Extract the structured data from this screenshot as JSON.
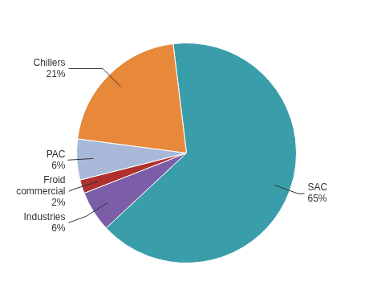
{
  "chart_data": {
    "type": "pie",
    "categories": [
      "SAC",
      "Industries",
      "Froid\ncommercial",
      "PAC",
      "Chillers"
    ],
    "values": [
      65,
      6,
      2,
      6,
      21
    ],
    "value_labels": [
      "65%",
      "6%",
      "2%",
      "6%",
      "21%"
    ],
    "colors": [
      "#3a9daa",
      "#7b5ea7",
      "#b03030",
      "#a8b8d8",
      "#e8883a"
    ],
    "data_labels": true
  }
}
